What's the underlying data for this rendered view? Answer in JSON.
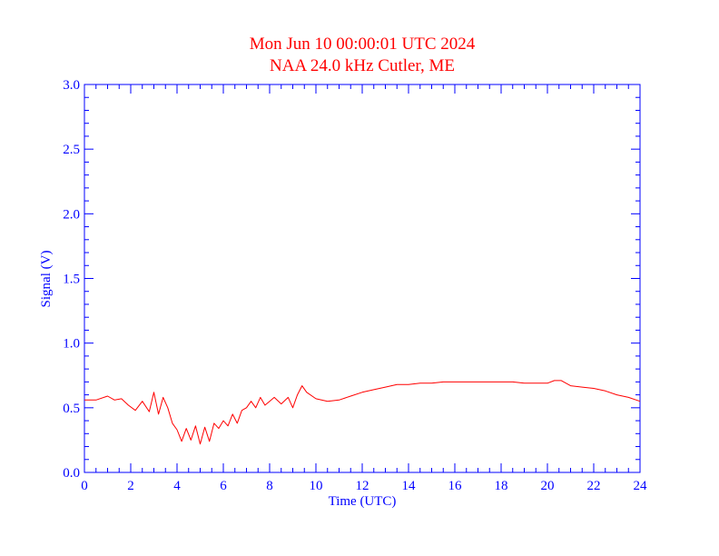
{
  "chart_data": {
    "type": "line",
    "title": "Mon Jun 10 00:00:01 UTC 2024",
    "subtitle": "NAA 24.0 kHz Cutler, ME",
    "xlabel": "Time (UTC)",
    "ylabel": "Signal (V)",
    "xlim": [
      0,
      24
    ],
    "ylim": [
      0,
      3.0
    ],
    "xticks": [
      "0",
      "2",
      "4",
      "6",
      "8",
      "10",
      "12",
      "14",
      "16",
      "18",
      "20",
      "22",
      "24"
    ],
    "yticks": [
      "0.0",
      "0.5",
      "1.0",
      "1.5",
      "2.0",
      "2.5",
      "3.0"
    ],
    "grid": false,
    "colors": {
      "title": "#ff0000",
      "axes": "#0000ff",
      "series": "#ff0000"
    },
    "series": [
      {
        "x": [
          0,
          0.5,
          1.0,
          1.3,
          1.6,
          1.9,
          2.2,
          2.5,
          2.8,
          3.0,
          3.2,
          3.4,
          3.6,
          3.8,
          4.0,
          4.2,
          4.4,
          4.6,
          4.8,
          5.0,
          5.2,
          5.4,
          5.6,
          5.8,
          6.0,
          6.2,
          6.4,
          6.6,
          6.8,
          7.0,
          7.2,
          7.4,
          7.6,
          7.8,
          8.0,
          8.2,
          8.5,
          8.8,
          9.0,
          9.2,
          9.4,
          9.6,
          10.0,
          10.5,
          11.0,
          11.5,
          12.0,
          12.5,
          13.0,
          13.5,
          14.0,
          14.5,
          15.0,
          15.5,
          16.0,
          16.5,
          17.0,
          17.5,
          18.0,
          18.5,
          19.0,
          19.5,
          20.0,
          20.3,
          20.6,
          21.0,
          21.5,
          22.0,
          22.5,
          23.0,
          23.5,
          24.0
        ],
        "values": [
          0.56,
          0.56,
          0.59,
          0.56,
          0.57,
          0.52,
          0.48,
          0.55,
          0.47,
          0.62,
          0.45,
          0.58,
          0.5,
          0.38,
          0.33,
          0.24,
          0.34,
          0.25,
          0.36,
          0.22,
          0.35,
          0.24,
          0.38,
          0.34,
          0.4,
          0.36,
          0.45,
          0.38,
          0.48,
          0.5,
          0.55,
          0.5,
          0.58,
          0.52,
          0.55,
          0.58,
          0.53,
          0.58,
          0.5,
          0.6,
          0.67,
          0.62,
          0.57,
          0.55,
          0.56,
          0.59,
          0.62,
          0.64,
          0.66,
          0.68,
          0.68,
          0.69,
          0.69,
          0.7,
          0.7,
          0.7,
          0.7,
          0.7,
          0.7,
          0.7,
          0.69,
          0.69,
          0.69,
          0.71,
          0.71,
          0.67,
          0.66,
          0.65,
          0.63,
          0.6,
          0.58,
          0.55
        ]
      }
    ]
  }
}
